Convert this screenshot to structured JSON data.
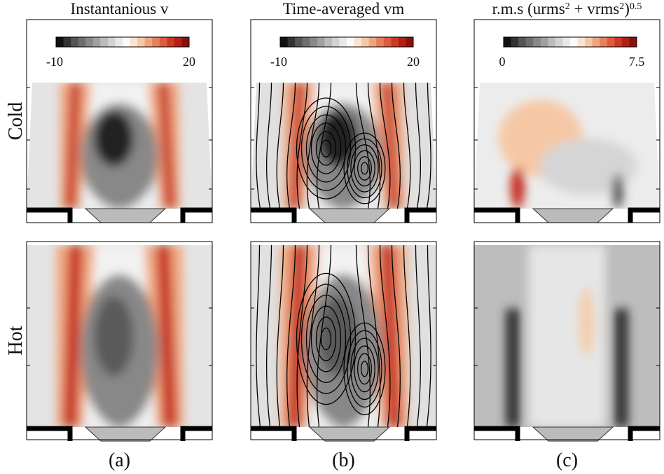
{
  "columns": [
    {
      "title": [
        {
          "text": "Instantanious v"
        }
      ],
      "colorbar": {
        "min_label": "-10",
        "max_label": "20"
      },
      "panel_label": "(a)"
    },
    {
      "title": [
        {
          "text": "Time-averaged vm"
        }
      ],
      "colorbar": {
        "min_label": "-10",
        "max_label": "20"
      },
      "panel_label": "(b)"
    },
    {
      "title": [
        {
          "text": "r.m.s (urms"
        },
        {
          "text": "2",
          "sup": true
        },
        {
          "text": " + vrms"
        },
        {
          "text": "2",
          "sup": true
        },
        {
          "text": ")"
        },
        {
          "text": "0.5",
          "sup": true
        }
      ],
      "colorbar": {
        "min_label": "0",
        "max_label": "7.5"
      },
      "panel_label": "(c)"
    }
  ],
  "rows": [
    {
      "label": "Cold"
    },
    {
      "label": "Hot"
    }
  ]
}
